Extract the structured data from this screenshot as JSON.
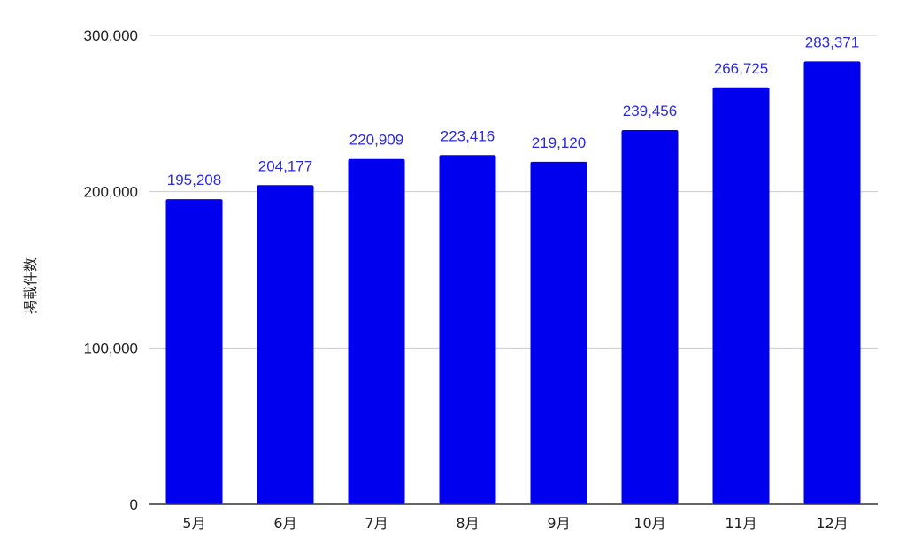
{
  "chart_data": {
    "type": "bar",
    "title": "",
    "xlabel": "",
    "ylabel": "掲載件数",
    "categories": [
      "5月",
      "6月",
      "7月",
      "8月",
      "9月",
      "10月",
      "11月",
      "12月"
    ],
    "values": [
      195208,
      204177,
      220909,
      223416,
      219120,
      239456,
      266725,
      283371
    ],
    "value_labels": [
      "195,208",
      "204,177",
      "220,909",
      "223,416",
      "219,120",
      "239,456",
      "266,725",
      "283,371"
    ],
    "ylim": [
      0,
      300000
    ],
    "yticks": [
      0,
      100000,
      200000,
      300000
    ],
    "ytick_labels": [
      "0",
      "100,000",
      "200,000",
      "300,000"
    ],
    "grid": true,
    "legend": "none",
    "bar_color": "#0000ee",
    "label_color": "#2b2bd9",
    "grid_color": "#cccccc",
    "axis_color": "#333333"
  }
}
